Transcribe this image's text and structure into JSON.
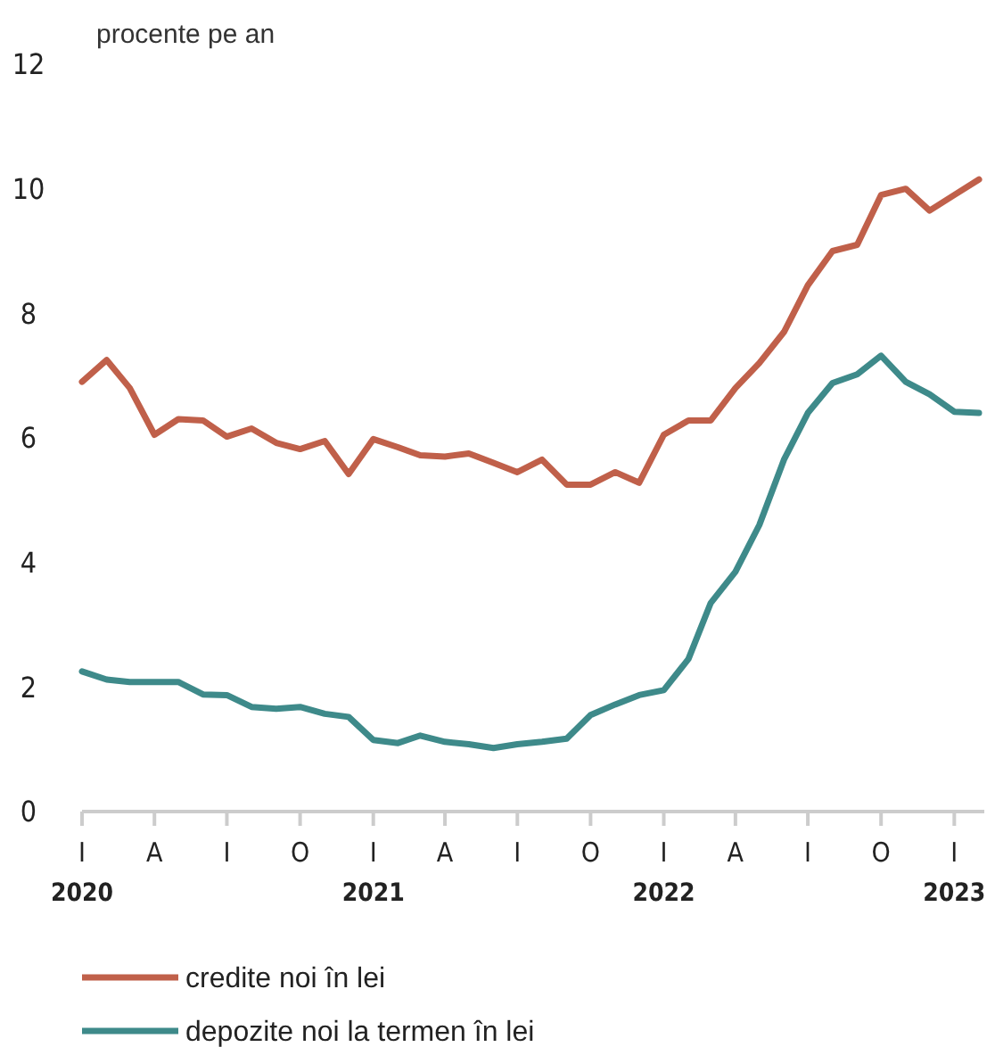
{
  "chart_data": {
    "type": "line",
    "ylabel": "procente pe an",
    "x": [
      "2020-01",
      "2020-02",
      "2020-03",
      "2020-04",
      "2020-05",
      "2020-06",
      "2020-07",
      "2020-08",
      "2020-09",
      "2020-10",
      "2020-11",
      "2020-12",
      "2021-01",
      "2021-02",
      "2021-03",
      "2021-04",
      "2021-05",
      "2021-06",
      "2021-07",
      "2021-08",
      "2021-09",
      "2021-10",
      "2021-11",
      "2021-12",
      "2022-01",
      "2022-02",
      "2022-03",
      "2022-04",
      "2022-05",
      "2022-06",
      "2022-07",
      "2022-08",
      "2022-09",
      "2022-10",
      "2022-11",
      "2022-12",
      "2023-01",
      "2023-02"
    ],
    "series": [
      {
        "name": "credite noi în lei",
        "color": "#c0604a",
        "values": [
          6.9,
          7.25,
          6.8,
          6.05,
          6.3,
          6.28,
          6.02,
          6.15,
          5.92,
          5.82,
          5.95,
          5.42,
          5.98,
          5.85,
          5.72,
          5.7,
          5.75,
          5.6,
          5.45,
          5.65,
          5.25,
          5.25,
          5.45,
          5.28,
          6.05,
          6.28,
          6.28,
          6.8,
          7.2,
          7.7,
          8.45,
          9.0,
          9.1,
          9.9,
          10.0,
          9.65,
          9.9,
          10.15
        ]
      },
      {
        "name": "depozite noi la termen în lei",
        "color": "#3e8a8a",
        "values": [
          2.25,
          2.12,
          2.08,
          2.08,
          2.08,
          1.88,
          1.87,
          1.68,
          1.65,
          1.68,
          1.57,
          1.52,
          1.15,
          1.1,
          1.22,
          1.12,
          1.08,
          1.02,
          1.08,
          1.12,
          1.17,
          1.55,
          1.72,
          1.87,
          1.95,
          2.45,
          3.35,
          3.85,
          4.6,
          5.65,
          6.4,
          6.88,
          7.02,
          7.32,
          6.9,
          6.7,
          6.42,
          6.4
        ]
      }
    ],
    "xlim": [
      "2020-01",
      "2023-02"
    ],
    "xticks": [
      {
        "value": "2020-01",
        "label": "I\n2020"
      },
      {
        "value": "2020-04",
        "label": "A"
      },
      {
        "value": "2020-07",
        "label": "I"
      },
      {
        "value": "2020-10",
        "label": "O"
      },
      {
        "value": "2021-01",
        "label": "I\n2021"
      },
      {
        "value": "2021-04",
        "label": "A"
      },
      {
        "value": "2021-07",
        "label": "I"
      },
      {
        "value": "2021-10",
        "label": "O"
      },
      {
        "value": "2022-01",
        "label": "I\n2022"
      },
      {
        "value": "2022-04",
        "label": "A"
      },
      {
        "value": "2022-07",
        "label": "I"
      },
      {
        "value": "2022-10",
        "label": "O"
      },
      {
        "value": "2023-01",
        "label": "I\n2023"
      }
    ],
    "ylim": [
      0,
      12
    ],
    "yticks": [
      0,
      2,
      4,
      6,
      8,
      10,
      12
    ],
    "grid": false,
    "legend": "bottom",
    "marker": "none",
    "line_style": "solid"
  }
}
